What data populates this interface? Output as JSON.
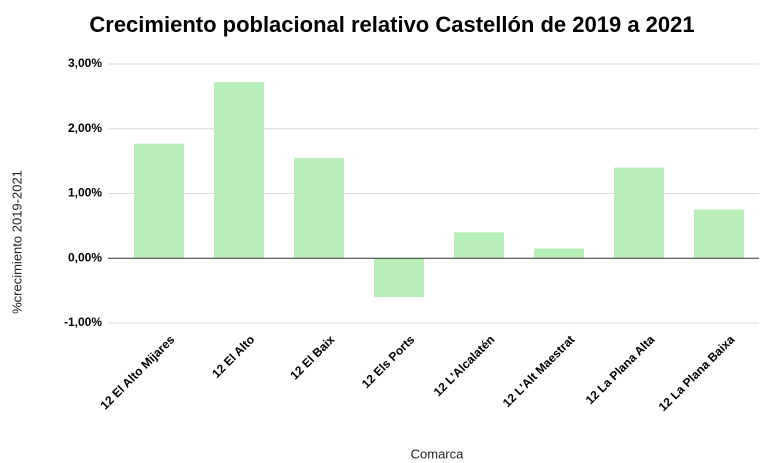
{
  "chart_data": {
    "type": "bar",
    "title": "Crecimiento poblacional relativo Castellón de 2019 a 2021",
    "x_label": "Comarca",
    "y_label": "%crecimiento 2019-2021",
    "categories": [
      "12 El Alto Mijares",
      "12 El Alto",
      "12 El Baix",
      "12 Els Ports",
      "12 L'Alcalatén",
      "12 L'Alt Maestrat",
      "12 La Plana Alta",
      "12 La Plana Baixa"
    ],
    "values": [
      1.77,
      2.72,
      1.55,
      -0.6,
      0.4,
      0.15,
      1.4,
      0.75
    ],
    "color": "#b8eeb7",
    "ylim": [
      -1,
      3
    ],
    "yticks": [
      {
        "value": -1,
        "label": "-1,00%"
      },
      {
        "value": 0,
        "label": "0,00%"
      },
      {
        "value": 1,
        "label": "1,00%"
      },
      {
        "value": 2,
        "label": "2,00%"
      },
      {
        "value": 3,
        "label": "3,00%"
      }
    ],
    "grid": true
  }
}
